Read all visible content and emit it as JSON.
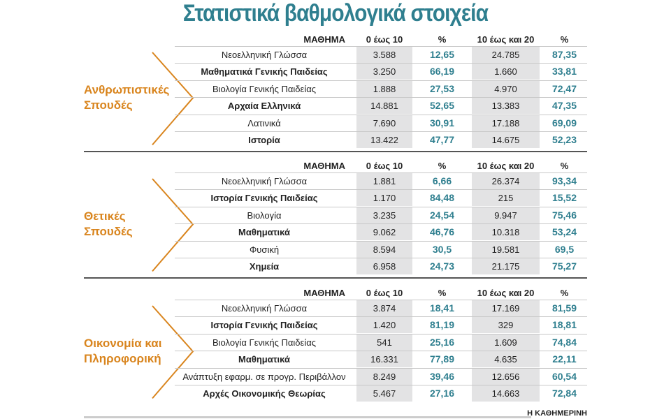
{
  "title": "Στατιστικά βαθμολογικά στοιχεία",
  "sections": [
    {
      "label": [
        "Ανθρωπιστικές",
        "Σπουδές"
      ],
      "header": [
        "ΜΑΘΗΜΑ",
        "0 έως 10",
        "%",
        "10 έως και 20",
        "%"
      ],
      "rows": [
        [
          "Νεοελληνική Γλώσσα",
          "3.588",
          "12,65",
          "24.785",
          "87,35"
        ],
        [
          "Μαθηματικά Γενικής Παιδείας",
          "3.250",
          "66,19",
          "1.660",
          "33,81"
        ],
        [
          "Βιολογία Γενικής Παιδείας",
          "1.888",
          "27,53",
          "4.970",
          "72,47"
        ],
        [
          "Αρχαία Ελληνικά",
          "14.881",
          "52,65",
          "13.383",
          "47,35"
        ],
        [
          "Λατινικά",
          "7.690",
          "30,91",
          "17.188",
          "69,09"
        ],
        [
          "Ιστορία",
          "13.422",
          "47,77",
          "14.675",
          "52,23"
        ]
      ]
    },
    {
      "label": [
        "Θετικές",
        "Σπουδές"
      ],
      "header": [
        "ΜΑΘΗΜΑ",
        "0 έως 10",
        "%",
        "10 έως και 20",
        "%"
      ],
      "rows": [
        [
          "Νεοελληνική Γλώσσα",
          "1.881",
          "6,66",
          "26.374",
          "93,34"
        ],
        [
          "Ιστορία Γενικής Παιδείας",
          "1.170",
          "84,48",
          "215",
          "15,52"
        ],
        [
          "Βιολογία",
          "3.235",
          "24,54",
          "9.947",
          "75,46"
        ],
        [
          "Μαθηματικά",
          "9.062",
          "46,76",
          "10.318",
          "53,24"
        ],
        [
          "Φυσική",
          "8.594",
          "30,5",
          "19.581",
          "69,5"
        ],
        [
          "Χημεία",
          "6.958",
          "24,73",
          "21.175",
          "75,27"
        ]
      ]
    },
    {
      "label": [
        "Οικονομία και",
        "Πληροφορική"
      ],
      "header": [
        "ΜΑΘΗΜΑ",
        "0 έως 10",
        "%",
        "10 έως και 20",
        "%"
      ],
      "rows": [
        [
          "Νεοελληνική Γλώσσα",
          "3.874",
          "18,41",
          "17.169",
          "81,59"
        ],
        [
          "Ιστορία Γενικής Παιδείας",
          "1.420",
          "81,19",
          "329",
          "18,81"
        ],
        [
          "Βιολογία Γενικής Παιδείας",
          "541",
          "25,16",
          "1.609",
          "74,84"
        ],
        [
          "Μαθηματικά",
          "16.331",
          "77,89",
          "4.635",
          "22,11"
        ],
        [
          "Ανάπτυξη εφαρμ. σε προγρ. Περιβάλλον",
          "8.249",
          "39,46",
          "12.656",
          "60,54"
        ],
        [
          "Αρχές Οικονομικής Θεωρίας",
          "5.467",
          "27,16",
          "14.663",
          "72,84"
        ]
      ]
    }
  ],
  "footer": "Η ΚΑΘΗΜΕΡΙΝΗ"
}
